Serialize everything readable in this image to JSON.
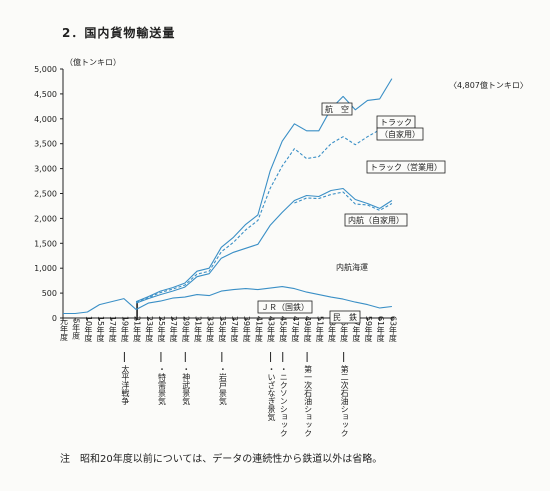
{
  "title": "2．国内貨物輸送量",
  "footnote": {
    "mark": "注",
    "text": "昭和20年度以前については、データの連続性から鉄道以外は省略。"
  },
  "chart_data": {
    "type": "line",
    "title": "",
    "ylabel": "（億トンキロ）",
    "ylim": [
      0,
      5000
    ],
    "yticks": [
      0,
      500,
      1000,
      1500,
      2000,
      2500,
      3000,
      3500,
      4000,
      4500,
      5000
    ],
    "ytick_labels": [
      "0",
      "500",
      "1,000",
      "1,500",
      "2,000",
      "2,500",
      "3,000",
      "3,500",
      "4,000",
      "4,500",
      "5,000"
    ],
    "x_ticks": [
      {
        "year": 0,
        "label": "元年度"
      },
      {
        "year": 5,
        "label": "5年度"
      },
      {
        "year": 10,
        "label": "10年度"
      },
      {
        "year": 15,
        "label": "15年度"
      },
      {
        "year": 17,
        "label": "17年度"
      },
      {
        "year": 19,
        "label": "19年度"
      },
      {
        "year": 21,
        "label": "21年度"
      },
      {
        "year": 23,
        "label": "23年度"
      },
      {
        "year": 25,
        "label": "25年度"
      },
      {
        "year": 27,
        "label": "27年度"
      },
      {
        "year": 29,
        "label": "29年度"
      },
      {
        "year": 31,
        "label": "31年度"
      },
      {
        "year": 33,
        "label": "33年度"
      },
      {
        "year": 35,
        "label": "35年度"
      },
      {
        "year": 37,
        "label": "37年度"
      },
      {
        "year": 39,
        "label": "39年度"
      },
      {
        "year": 41,
        "label": "41年度"
      },
      {
        "year": 43,
        "label": "43年度"
      },
      {
        "year": 45,
        "label": "45年度"
      },
      {
        "year": 47,
        "label": "47年度"
      },
      {
        "year": 49,
        "label": "49年度"
      },
      {
        "year": 51,
        "label": "51年度"
      },
      {
        "year": 53,
        "label": "53年度"
      },
      {
        "year": 55,
        "label": "55年度"
      },
      {
        "year": 57,
        "label": "57年度"
      },
      {
        "year": 59,
        "label": "59年度"
      },
      {
        "year": 61,
        "label": "61年度"
      },
      {
        "year": 63,
        "label": "63年度"
      }
    ],
    "x_tick_positions": [
      0,
      1,
      2,
      3,
      4,
      5,
      6,
      7,
      8,
      9,
      10,
      11,
      12,
      13,
      14,
      15,
      16,
      17,
      18,
      19,
      20,
      21,
      22,
      23,
      24,
      25,
      26,
      27
    ],
    "series": [
      {
        "name": "航空",
        "style": "solid",
        "points": [
          [
            6,
            330
          ],
          [
            7,
            430
          ],
          [
            8,
            540
          ],
          [
            9,
            610
          ],
          [
            10,
            700
          ],
          [
            11,
            940
          ],
          [
            12,
            1000
          ],
          [
            13,
            1420
          ],
          [
            14,
            1620
          ],
          [
            15,
            1880
          ],
          [
            16,
            2070
          ],
          [
            17,
            2950
          ],
          [
            18,
            3550
          ],
          [
            19,
            3900
          ],
          [
            20,
            3760
          ],
          [
            21,
            3760
          ],
          [
            22,
            4200
          ],
          [
            23,
            4450
          ],
          [
            24,
            4180
          ],
          [
            25,
            4370
          ],
          [
            26,
            4400
          ],
          [
            27,
            4807
          ]
        ]
      },
      {
        "name": "トラック（自家用）",
        "style": "dashed",
        "points": [
          [
            6,
            320
          ],
          [
            7,
            410
          ],
          [
            8,
            510
          ],
          [
            9,
            580
          ],
          [
            10,
            660
          ],
          [
            11,
            880
          ],
          [
            12,
            940
          ],
          [
            13,
            1330
          ],
          [
            14,
            1520
          ],
          [
            15,
            1770
          ],
          [
            16,
            1960
          ],
          [
            17,
            2600
          ],
          [
            18,
            3050
          ],
          [
            19,
            3400
          ],
          [
            20,
            3200
          ],
          [
            21,
            3240
          ],
          [
            22,
            3500
          ],
          [
            23,
            3640
          ],
          [
            24,
            3480
          ],
          [
            25,
            3640
          ],
          [
            26,
            3780
          ],
          [
            27,
            4050
          ]
        ]
      },
      {
        "name": "トラック（営業用）",
        "style": "solid",
        "points": [
          [
            6,
            300
          ],
          [
            7,
            390
          ],
          [
            8,
            470
          ],
          [
            9,
            540
          ],
          [
            10,
            620
          ],
          [
            11,
            830
          ],
          [
            12,
            890
          ],
          [
            13,
            1200
          ],
          [
            14,
            1320
          ],
          [
            15,
            1400
          ],
          [
            16,
            1480
          ],
          [
            17,
            1860
          ],
          [
            18,
            2120
          ],
          [
            19,
            2360
          ],
          [
            20,
            2460
          ],
          [
            21,
            2440
          ],
          [
            22,
            2560
          ],
          [
            23,
            2600
          ],
          [
            24,
            2380
          ],
          [
            25,
            2300
          ],
          [
            26,
            2200
          ],
          [
            27,
            2360
          ]
        ]
      },
      {
        "name": "内航（自家用）",
        "style": "dashed",
        "points": [
          [
            19,
            2310
          ],
          [
            20,
            2410
          ],
          [
            21,
            2400
          ],
          [
            22,
            2480
          ],
          [
            23,
            2530
          ],
          [
            24,
            2290
          ],
          [
            25,
            2270
          ],
          [
            26,
            2160
          ],
          [
            27,
            2300
          ]
        ]
      },
      {
        "name": "ＪＲ（国鉄）",
        "style": "solid",
        "points": [
          [
            0,
            90
          ],
          [
            1,
            90
          ],
          [
            2,
            120
          ],
          [
            3,
            270
          ],
          [
            4,
            330
          ],
          [
            5,
            390
          ],
          [
            6,
            170
          ],
          [
            7,
            300
          ],
          [
            8,
            340
          ],
          [
            9,
            400
          ],
          [
            10,
            420
          ],
          [
            11,
            470
          ],
          [
            12,
            450
          ],
          [
            13,
            540
          ],
          [
            14,
            570
          ],
          [
            15,
            590
          ],
          [
            16,
            570
          ],
          [
            17,
            600
          ],
          [
            18,
            630
          ],
          [
            19,
            590
          ],
          [
            20,
            520
          ],
          [
            21,
            470
          ],
          [
            22,
            420
          ],
          [
            23,
            380
          ],
          [
            24,
            320
          ],
          [
            25,
            270
          ],
          [
            26,
            200
          ],
          [
            27,
            230
          ]
        ]
      }
    ],
    "annotations": [
      {
        "text": "〈4,807億トンキロ〉",
        "year": 63,
        "value": 4807,
        "boxed": false
      },
      {
        "text": "航　空",
        "boxed": true
      },
      {
        "text": "トラック",
        "boxed": true
      },
      {
        "text": "（自家用）",
        "boxed": true
      },
      {
        "text": "トラック（営業用）",
        "boxed": true
      },
      {
        "text": "内航（自家用）",
        "boxed": true
      },
      {
        "text": "内航海運",
        "boxed": false
      },
      {
        "text": "ＪＲ（国鉄）",
        "boxed": true
      },
      {
        "text": "民　鉄",
        "boxed": true
      }
    ],
    "events": [
      {
        "year": 19,
        "text": "太平洋戦争"
      },
      {
        "year": 25,
        "text": "・特需景気"
      },
      {
        "year": 29,
        "text": "・神武景気"
      },
      {
        "year": 35,
        "text": "・岩戸景気"
      },
      {
        "year": 43,
        "text": "・いざなぎ景気"
      },
      {
        "year": 45,
        "text": "・ニクソンショック"
      },
      {
        "year": 49,
        "text": "第一次石油ショック"
      },
      {
        "year": 55,
        "text": "第二次石油ショック"
      }
    ],
    "grid": false
  }
}
